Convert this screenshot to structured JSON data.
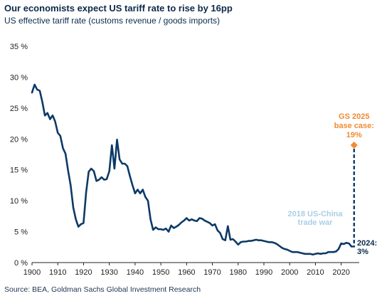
{
  "header": {
    "title": "Our economists expect US tariff rate to rise by 16pp",
    "subtitle": "US effective tariff rate (customs revenue / goods imports)"
  },
  "footer": {
    "source": "Source: BEA, Goldman Sachs Global Investment Research"
  },
  "colors": {
    "series": "#0d3a66",
    "forecast": "#f08a33",
    "annotation_light": "#a9cfe6",
    "text": "#0b2a4a"
  },
  "chart_data": {
    "type": "line",
    "title": "Our economists expect US tariff rate to rise by 16pp",
    "subtitle": "US effective tariff rate (customs revenue / goods imports)",
    "xlabel": "",
    "ylabel": "",
    "xlim": [
      1900,
      2027
    ],
    "ylim": [
      0,
      35
    ],
    "x_ticks": [
      1900,
      1910,
      1920,
      1930,
      1940,
      1950,
      1960,
      1970,
      1980,
      1990,
      2000,
      2010,
      2020
    ],
    "y_ticks": [
      0,
      5,
      10,
      15,
      20,
      25,
      30,
      35
    ],
    "y_tick_labels": [
      "0 %",
      "5 %",
      "10 %",
      "15 %",
      "20 %",
      "25 %",
      "30 %",
      "35 %"
    ],
    "grid": false,
    "series": [
      {
        "values_note": "annual effective tariff rate, %",
        "x": [
          1900,
          1901,
          1902,
          1903,
          1904,
          1905,
          1906,
          1907,
          1908,
          1909,
          1910,
          1911,
          1912,
          1913,
          1914,
          1915,
          1916,
          1917,
          1918,
          1919,
          1920,
          1921,
          1922,
          1923,
          1924,
          1925,
          1926,
          1927,
          1928,
          1929,
          1930,
          1931,
          1932,
          1933,
          1934,
          1935,
          1936,
          1937,
          1938,
          1939,
          1940,
          1941,
          1942,
          1943,
          1944,
          1945,
          1946,
          1947,
          1948,
          1949,
          1950,
          1951,
          1952,
          1953,
          1954,
          1955,
          1956,
          1957,
          1958,
          1959,
          1960,
          1961,
          1962,
          1963,
          1964,
          1965,
          1966,
          1967,
          1968,
          1969,
          1970,
          1971,
          1972,
          1973,
          1974,
          1975,
          1976,
          1977,
          1978,
          1979,
          1980,
          1981,
          1982,
          1983,
          1984,
          1985,
          1986,
          1987,
          1988,
          1989,
          1990,
          1991,
          1992,
          1993,
          1994,
          1995,
          1996,
          1997,
          1998,
          1999,
          2000,
          2001,
          2002,
          2003,
          2004,
          2005,
          2006,
          2007,
          2008,
          2009,
          2010,
          2011,
          2012,
          2013,
          2014,
          2015,
          2016,
          2017,
          2018,
          2019,
          2020,
          2021,
          2022,
          2023,
          2024
        ],
        "y": [
          27.5,
          28.8,
          28.0,
          27.8,
          26.0,
          23.8,
          24.2,
          23.2,
          23.8,
          22.8,
          21.0,
          20.5,
          18.5,
          17.6,
          14.9,
          12.5,
          8.9,
          7.0,
          5.8,
          6.2,
          6.4,
          11.4,
          14.7,
          15.2,
          14.8,
          13.2,
          13.4,
          13.8,
          13.4,
          13.5,
          14.8,
          19.0,
          15.2,
          19.9,
          16.7,
          16.0,
          16.0,
          15.6,
          14.0,
          12.5,
          11.2,
          11.8,
          11.2,
          11.8,
          10.6,
          10.0,
          7.0,
          5.3,
          5.7,
          5.4,
          5.4,
          5.3,
          5.5,
          5.0,
          6.0,
          5.6,
          5.8,
          6.1,
          6.5,
          6.8,
          7.2,
          6.8,
          7.0,
          6.8,
          6.7,
          7.2,
          7.1,
          6.8,
          6.6,
          6.4,
          6.0,
          6.2,
          5.2,
          4.8,
          3.8,
          3.6,
          5.9,
          3.7,
          3.8,
          3.4,
          2.9,
          3.3,
          3.4,
          3.4,
          3.5,
          3.5,
          3.6,
          3.7,
          3.6,
          3.6,
          3.5,
          3.4,
          3.3,
          3.3,
          3.2,
          3.0,
          2.7,
          2.4,
          2.2,
          2.1,
          1.9,
          1.7,
          1.7,
          1.7,
          1.6,
          1.5,
          1.4,
          1.4,
          1.4,
          1.3,
          1.4,
          1.5,
          1.4,
          1.5,
          1.5,
          1.7,
          1.7,
          1.7,
          1.8,
          2.2,
          3.1,
          3.0,
          3.2,
          3.1,
          2.6
        ]
      }
    ],
    "forecast": {
      "x": 2025,
      "y": 19
    },
    "annotations": [
      {
        "id": "gs2025",
        "lines": [
          "GS 2025",
          "base case:",
          "19%"
        ]
      },
      {
        "id": "tradewar",
        "lines": [
          "2018 US-China",
          "trade war"
        ]
      },
      {
        "id": "y2024",
        "lines": [
          "2024:",
          "3%"
        ]
      }
    ]
  }
}
